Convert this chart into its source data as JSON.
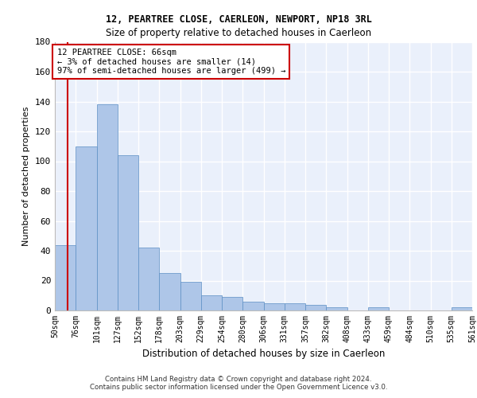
{
  "title1": "12, PEARTREE CLOSE, CAERLEON, NEWPORT, NP18 3RL",
  "title2": "Size of property relative to detached houses in Caerleon",
  "xlabel": "Distribution of detached houses by size in Caerleon",
  "ylabel": "Number of detached properties",
  "bar_values": [
    44,
    110,
    138,
    104,
    42,
    25,
    19,
    10,
    9,
    6,
    5,
    5,
    4,
    2,
    0,
    2,
    0,
    0,
    0,
    2
  ],
  "bar_labels": [
    "50sqm",
    "76sqm",
    "101sqm",
    "127sqm",
    "152sqm",
    "178sqm",
    "203sqm",
    "229sqm",
    "254sqm",
    "280sqm",
    "306sqm",
    "331sqm",
    "357sqm",
    "382sqm",
    "408sqm",
    "433sqm",
    "459sqm",
    "484sqm",
    "510sqm",
    "535sqm",
    "561sqm"
  ],
  "bar_color": "#aec6e8",
  "bar_edge_color": "#5b8ec4",
  "annotation_box_color": "#cc0000",
  "annotation_line_color": "#cc0000",
  "annotation_text_line1": "12 PEARTREE CLOSE: 66sqm",
  "annotation_text_line2": "← 3% of detached houses are smaller (14)",
  "annotation_text_line3": "97% of semi-detached houses are larger (499) →",
  "ylim": [
    0,
    180
  ],
  "yticks": [
    0,
    20,
    40,
    60,
    80,
    100,
    120,
    140,
    160,
    180
  ],
  "bg_color": "#eaf0fb",
  "grid_color": "#ffffff",
  "footer_line1": "Contains HM Land Registry data © Crown copyright and database right 2024.",
  "footer_line2": "Contains public sector information licensed under the Open Government Licence v3.0."
}
